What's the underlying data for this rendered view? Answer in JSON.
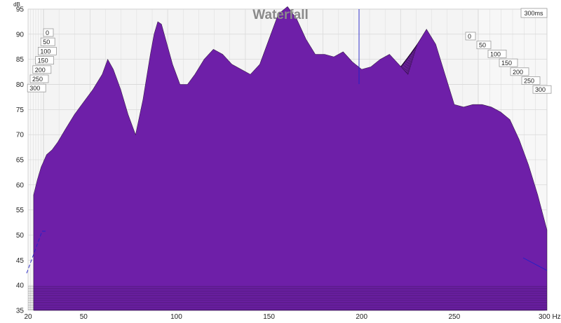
{
  "chart_data": {
    "type": "area",
    "title": "Waterfall",
    "ylabel": "dB",
    "xunit": "Hz",
    "time_unit": "ms",
    "ylim": [
      35,
      95
    ],
    "xlim": [
      20,
      300
    ],
    "y_ticks": [
      35,
      40,
      45,
      50,
      55,
      60,
      65,
      70,
      75,
      80,
      85,
      90,
      95
    ],
    "x_ticks": [
      20,
      50,
      100,
      150,
      200,
      250,
      300
    ],
    "x_tick_labels": [
      "20",
      "50",
      "100",
      "150",
      "200",
      "250",
      "300 Hz"
    ],
    "time_labels": [
      "0",
      "50",
      "100",
      "150",
      "200",
      "250",
      "300"
    ],
    "time_end_label": "300ms",
    "grid": true,
    "fill_color": "#8B2FC9",
    "top_color": "#6E1FA8",
    "slice_line_color": "#1a0526",
    "cursor_color": "#2020c8",
    "slice_count": 34,
    "front_response": {
      "x": [
        23,
        25,
        27,
        30,
        33,
        36,
        40,
        45,
        50,
        55,
        60,
        63,
        66,
        70,
        74,
        78,
        82,
        86,
        88,
        90,
        92,
        95,
        98,
        102,
        106,
        110,
        115,
        120,
        125,
        130,
        135,
        140,
        145,
        150,
        155,
        160,
        165,
        170,
        175,
        180,
        185,
        190,
        195,
        200,
        205,
        210,
        215,
        220,
        225,
        230,
        235,
        240,
        245,
        250,
        255,
        260,
        265,
        270,
        275,
        280,
        285,
        290,
        295,
        300
      ],
      "y": [
        58,
        61,
        63.5,
        66,
        67,
        68.5,
        71,
        74,
        76.5,
        79,
        82,
        85,
        83,
        79,
        74,
        70,
        77,
        86,
        90,
        92.5,
        92,
        88,
        84,
        80,
        80,
        82,
        85,
        87,
        86,
        84,
        83,
        82,
        84,
        89,
        94,
        95.5,
        93,
        89,
        86,
        86,
        85.5,
        86.5,
        84.5,
        83,
        83.5,
        85,
        86,
        84,
        82,
        88,
        91,
        88,
        82,
        76,
        75.5,
        76,
        76,
        75.5,
        74.5,
        73,
        69,
        64,
        58,
        51
      ]
    }
  }
}
